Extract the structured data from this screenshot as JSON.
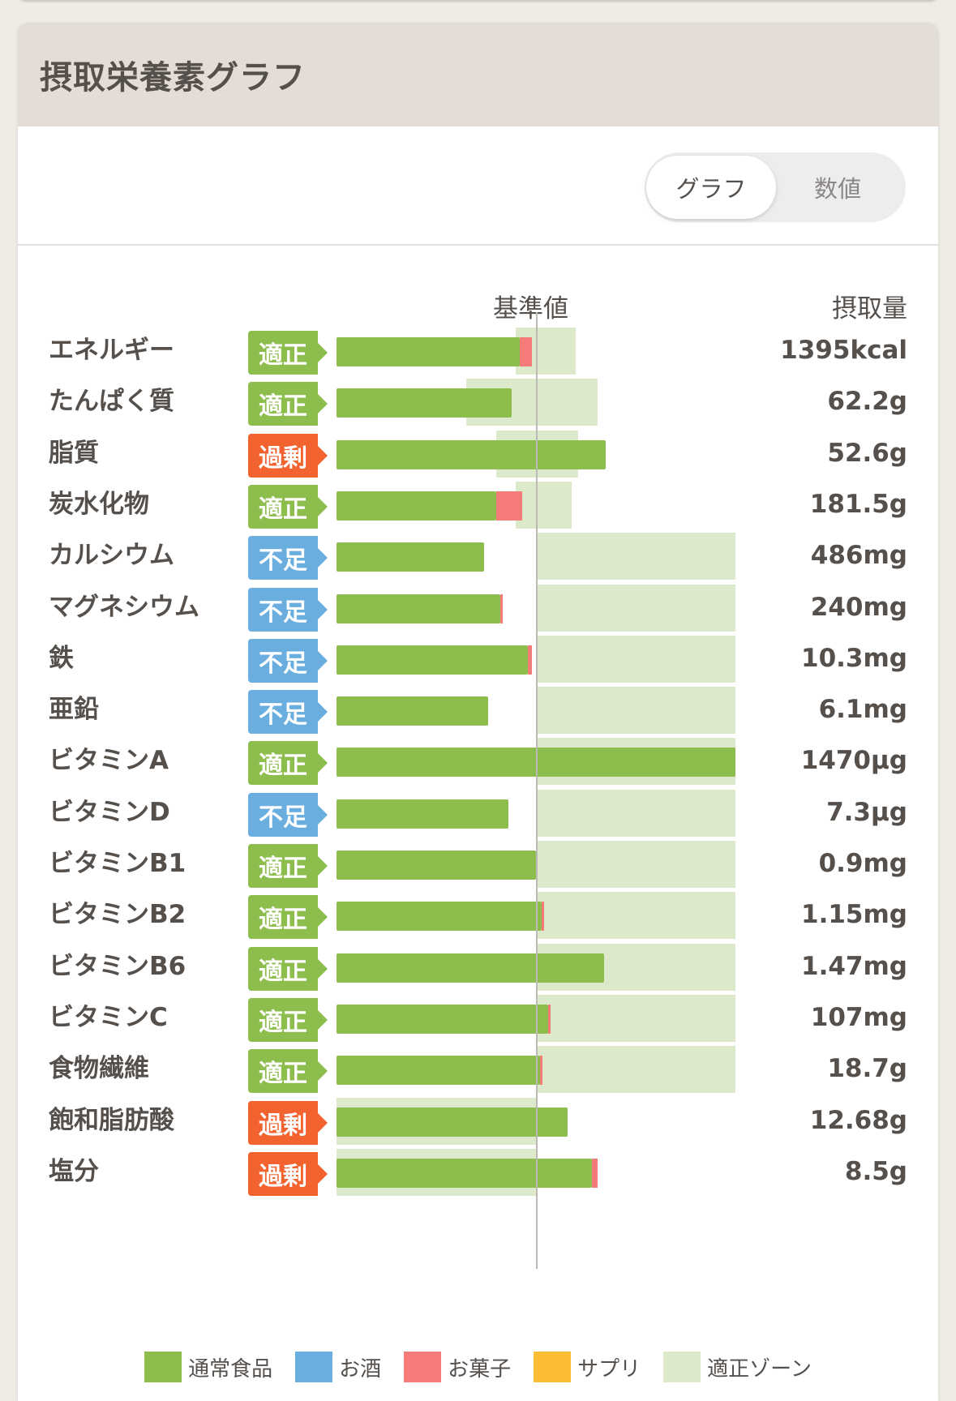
{
  "header": {
    "title": "摂取栄養素グラフ"
  },
  "view_toggle": {
    "graph_label": "グラフ",
    "numeric_label": "数値",
    "selected": "グラフ"
  },
  "columns": {
    "reference": "基準値",
    "intake": "摂取量"
  },
  "colors": {
    "status_ok": "#8dbd4d",
    "status_low": "#6aaee0",
    "status_high": "#f2632f",
    "food": "#8dbd4d",
    "alcohol": "#6aaee0",
    "snack": "#f47b78",
    "supplement": "#fbbd36",
    "zone": "#dde9cb"
  },
  "chart_data": {
    "type": "bar",
    "title": "摂取栄養素グラフ",
    "reference_label": "基準値",
    "value_label": "摂取量",
    "unit_note": "percent of reference value (基準値 = 100)",
    "rows": [
      {
        "name": "エネルギー",
        "status": "適正",
        "status_type": "ok",
        "value": "1395kcal",
        "food_pct": 92,
        "snack_pct": 6,
        "zone": [
          90,
          120
        ]
      },
      {
        "name": "たんぱく質",
        "status": "適正",
        "status_type": "ok",
        "value": "62.2g",
        "food_pct": 88,
        "snack_pct": 0,
        "zone": [
          65,
          131
        ]
      },
      {
        "name": "脂質",
        "status": "過剰",
        "status_type": "high",
        "value": "52.6g",
        "food_pct": 135,
        "snack_pct": 0,
        "zone": [
          80,
          121
        ]
      },
      {
        "name": "炭水化物",
        "status": "適正",
        "status_type": "ok",
        "value": "181.5g",
        "food_pct": 80,
        "snack_pct": 13,
        "zone": [
          90,
          118
        ]
      },
      {
        "name": "カルシウム",
        "status": "不足",
        "status_type": "low",
        "value": "486mg",
        "food_pct": 74,
        "snack_pct": 0,
        "zone": [
          100,
          200
        ]
      },
      {
        "name": "マグネシウム",
        "status": "不足",
        "status_type": "low",
        "value": "240mg",
        "food_pct": 82,
        "snack_pct": 1,
        "zone": [
          100,
          200
        ]
      },
      {
        "name": "鉄",
        "status": "不足",
        "status_type": "low",
        "value": "10.3mg",
        "food_pct": 96,
        "snack_pct": 2,
        "zone": [
          100,
          200
        ]
      },
      {
        "name": "亜鉛",
        "status": "不足",
        "status_type": "low",
        "value": "6.1mg",
        "food_pct": 76,
        "snack_pct": 0,
        "zone": [
          100,
          200
        ]
      },
      {
        "name": "ビタミンA",
        "status": "適正",
        "status_type": "ok",
        "value": "1470µg",
        "food_pct": 200,
        "snack_pct": 0,
        "zone": [
          100,
          200
        ]
      },
      {
        "name": "ビタミンD",
        "status": "不足",
        "status_type": "low",
        "value": "7.3µg",
        "food_pct": 86,
        "snack_pct": 0,
        "zone": [
          100,
          200
        ]
      },
      {
        "name": "ビタミンB1",
        "status": "適正",
        "status_type": "ok",
        "value": "0.9mg",
        "food_pct": 100,
        "snack_pct": 0,
        "zone": [
          100,
          200
        ]
      },
      {
        "name": "ビタミンB2",
        "status": "適正",
        "status_type": "ok",
        "value": "1.15mg",
        "food_pct": 103,
        "snack_pct": 1,
        "zone": [
          100,
          200
        ]
      },
      {
        "name": "ビタミンB6",
        "status": "適正",
        "status_type": "ok",
        "value": "1.47mg",
        "food_pct": 134,
        "snack_pct": 0,
        "zone": [
          100,
          200
        ]
      },
      {
        "name": "ビタミンC",
        "status": "適正",
        "status_type": "ok",
        "value": "107mg",
        "food_pct": 106,
        "snack_pct": 1,
        "zone": [
          100,
          200
        ]
      },
      {
        "name": "食物繊維",
        "status": "適正",
        "status_type": "ok",
        "value": "18.7g",
        "food_pct": 102,
        "snack_pct": 1,
        "zone": [
          100,
          200
        ]
      },
      {
        "name": "飽和脂肪酸",
        "status": "過剰",
        "status_type": "high",
        "value": "12.68g",
        "food_pct": 116,
        "snack_pct": 0,
        "zone": [
          0,
          100
        ]
      },
      {
        "name": "塩分",
        "status": "過剰",
        "status_type": "high",
        "value": "8.5g",
        "food_pct": 128,
        "snack_pct": 3,
        "zone": [
          0,
          100
        ]
      }
    ],
    "legend": [
      {
        "label": "通常食品",
        "color": "#8dbd4d"
      },
      {
        "label": "お酒",
        "color": "#6aaee0"
      },
      {
        "label": "お菓子",
        "color": "#f47b78"
      },
      {
        "label": "サプリ",
        "color": "#fbbd36"
      },
      {
        "label": "適正ゾーン",
        "color": "#dde9cb"
      }
    ]
  }
}
